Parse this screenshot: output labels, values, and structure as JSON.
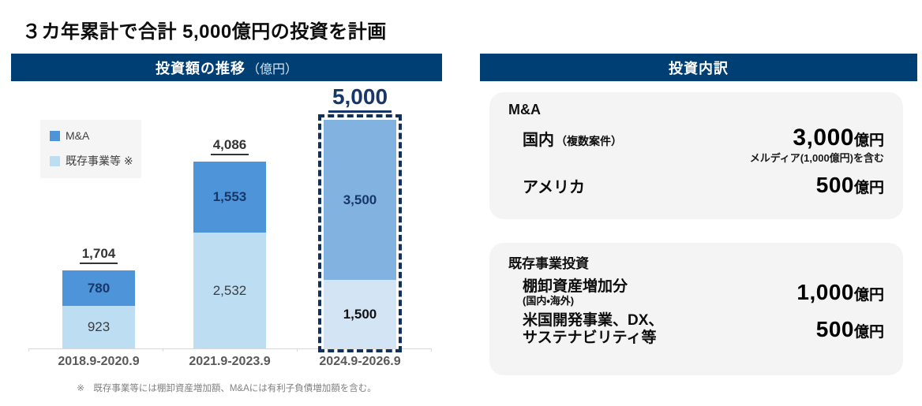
{
  "title": "３カ年累計で合計 5,000億円の投資を計画",
  "investment_chart": {
    "header": "投資額の推移",
    "header_unit": "（億円）",
    "footnote": "※　既存事業等には棚卸資産増加額、M&Aには有利子負債増加額を含む。"
  },
  "chart_data": {
    "type": "bar",
    "stacked": true,
    "title": "投資額の推移（億円）",
    "unit": "億円",
    "categories": [
      "2018.9-2020.9",
      "2021.9-2023.9",
      "2024.9-2026.9"
    ],
    "series": [
      {
        "name": "M&A",
        "values": [
          780,
          1553,
          3500
        ],
        "labels": [
          "780",
          "1,553",
          "3,500"
        ],
        "color": "#4E94D9",
        "highlight_color": "#82B2E0"
      },
      {
        "name": "既存事業等 ※",
        "values": [
          923,
          2532,
          1500
        ],
        "labels": [
          "923",
          "2,532",
          "1,500"
        ],
        "color": "#BDDDF2",
        "highlight_color": "#D3E5F5"
      }
    ],
    "totals": {
      "values": [
        1704,
        4086,
        5000
      ],
      "labels": [
        "1,704",
        "4,086",
        "5,000"
      ]
    },
    "highlight_index": 2,
    "highlight_style": "dashed-navy-outline-forecast-shading",
    "legend_position": "upper-left",
    "ylim": [
      0,
      5000
    ],
    "grid": false
  },
  "breakdown": {
    "header": "投資内訳",
    "sections": [
      {
        "heading": "M&A",
        "rows": [
          {
            "label": "国内",
            "label_sub": "（複数案件）",
            "value": "3,000",
            "unit": "億円",
            "note": "メルディア(1,000億円)を含む"
          },
          {
            "label": "アメリカ",
            "value": "500",
            "unit": "億円"
          }
        ]
      },
      {
        "heading": "既存事業投資",
        "rows": [
          {
            "label": "棚卸資産増加分",
            "label_sub": "(国内・海外)",
            "value": "1,000",
            "unit": "億円"
          },
          {
            "label": "米国開発事業、DX、",
            "label_line2": "サステナビリティ等",
            "value": "500",
            "unit": "億円"
          }
        ]
      }
    ]
  },
  "colors": {
    "banner_navy": "#003F73",
    "bar_ma": "#4E94D9",
    "bar_existing": "#BDDDF2",
    "bar_ma_forecast": "#82B2E0",
    "bar_existing_forecast": "#D3E5F5",
    "highlight_outline_navy": "#12305E",
    "total_highlight_navy": "#17376B"
  }
}
